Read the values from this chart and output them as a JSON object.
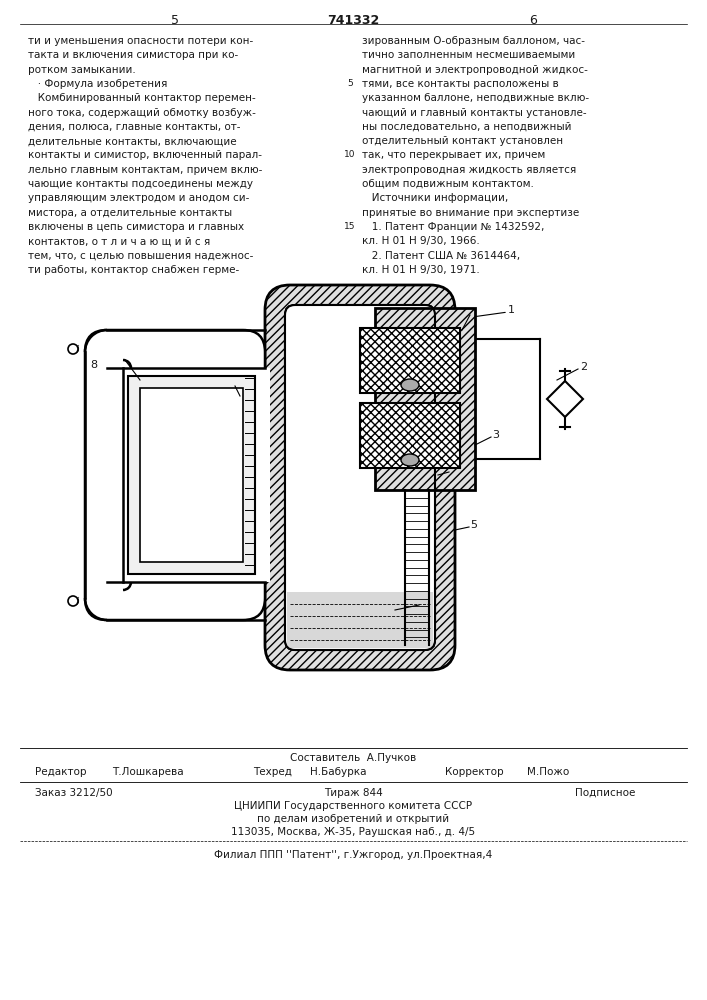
{
  "page_number_left": "5",
  "page_number_center": "741332",
  "page_number_right": "6",
  "col1_text": [
    "ти и уменьшения опасности потери кон-",
    "такта и включения симистора при ко-",
    "ротком замыкании.",
    "   · Формула изобретения",
    "   Комбинированный контактор перемен-",
    "ного тока, содержащий обмотку возбуж-",
    "дения, полюса, главные контакты, от-",
    "делительные контакты, включающие",
    "контакты и симистор, включенный парал-",
    "лельно главным контактам, причем вклю-",
    "чающие контакты подсоединены между",
    "управляющим электродом и анодом си-",
    "мистора, а отделительные контакты",
    "включены в цепь симистора и главных",
    "контактов, о т л и ч а ю щ и й с я",
    "тем, что, с целью повышения надежнос-",
    "ти работы, контактор снабжен герме-"
  ],
  "col2_text": [
    "зированным О-образным баллоном, час-",
    "тично заполненным несмешиваемыми",
    "магнитной и электропроводной жидкос-",
    "тями, все контакты расположены в",
    "указанном баллоне, неподвижные вклю-",
    "чающий и главный контакты установле-",
    "ны последовательно, а неподвижный",
    "отделительный контакт установлен",
    "так, что перекрывает их, причем",
    "электропроводная жидкость является",
    "общим подвижным контактом.",
    "   Источники информации,",
    "принятые во внимание при экспертизе",
    "   1. Патент Франции № 1432592,",
    "кл. Н 01 Н 9/30, 1966.",
    "   2. Патент США № 3614464,",
    "кл. Н 01 Н 9/30, 1971."
  ],
  "footer_col1_label": "Составитель",
  "footer_col1_name": "А.Пучков",
  "footer_col2_label": "Редактор",
  "footer_col2_name": "Т.Лошкарева",
  "footer_col3_label": "Техред",
  "footer_col3_name": "Н.Бабурка",
  "footer_col4_label": "Корректор",
  "footer_col4_name": "М.Пожо",
  "order_text": "Заказ 3212/50",
  "tirage_text": "Тираж 844",
  "podpisnoe_text": "Подписное",
  "org_line1": "ЦНИИПИ Государственного комитета СССР",
  "org_line2": "по делам изобретений и открытий",
  "org_line3": "113035, Москва, Ж-35, Раушская наб., д. 4/5",
  "branch_text": "Филиал ППП ''Патент'', г.Ужгород, ул.Проектная,4",
  "bg_color": "#ffffff",
  "text_color": "#1a1a1a"
}
